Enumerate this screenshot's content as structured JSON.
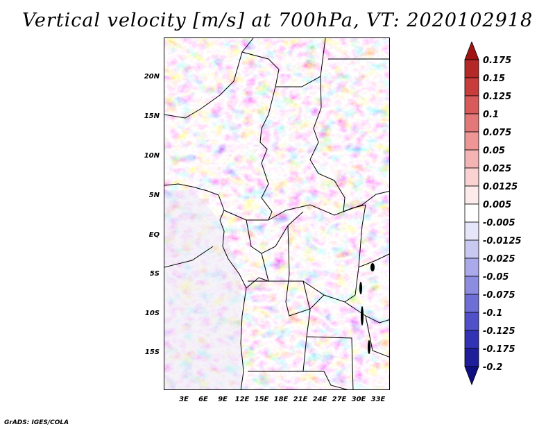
{
  "title": "Vertical velocity [m/s] at 700hPa, VT: 2020102918",
  "credit": "GrADS: IGES/COLA",
  "map": {
    "lat_labels": [
      "20N",
      "15N",
      "10N",
      "5N",
      "EQ",
      "5S",
      "10S",
      "15S"
    ],
    "lon_labels": [
      "3E",
      "6E",
      "9E",
      "12E",
      "15E",
      "18E",
      "21E",
      "24E",
      "27E",
      "30E",
      "33E"
    ]
  },
  "colorbar": {
    "labels": [
      "0.175",
      "0.15",
      "0.125",
      "0.1",
      "0.075",
      "0.05",
      "0.025",
      "0.0125",
      "0.005",
      "-0.005",
      "-0.0125",
      "-0.025",
      "-0.05",
      "-0.075",
      "-0.1",
      "-0.125",
      "-0.175",
      "-0.2"
    ],
    "colors": [
      "#a01414",
      "#b42828",
      "#c83c3c",
      "#d85a5a",
      "#e47878",
      "#ee9696",
      "#f5b4b4",
      "#fad2d2",
      "#fdeaea",
      "#ffffff",
      "#e6e6fa",
      "#c8c8f0",
      "#aaaaeb",
      "#8c8ce1",
      "#6e6ed7",
      "#5050c8",
      "#3232b4",
      "#1e1e9b",
      "#0f0f82"
    ],
    "top_color": "#a01414",
    "bottom_color": "#0f0f82"
  }
}
